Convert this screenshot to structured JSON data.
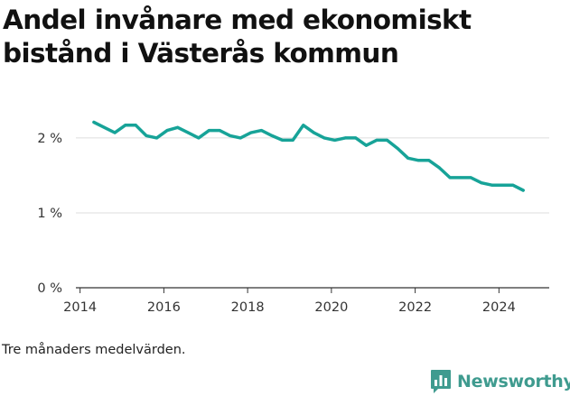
{
  "title": "Andel invånare med ekonomiskt bistånd i Västerås kommun",
  "note": "Tre månaders medelvärden.",
  "brand": {
    "name": "Newsworthy",
    "icon": "bar-chart-logo-icon",
    "color": "#3f9b8f"
  },
  "chart_data": {
    "type": "line",
    "title": "Andel invånare med ekonomiskt bistånd i Västerås kommun",
    "xlabel": "",
    "ylabel": "",
    "xlim": [
      2013.9,
      2025.2
    ],
    "ylim": [
      0,
      2.3
    ],
    "grid": "horizontal",
    "line_color": "#17a398",
    "x_ticks": [
      {
        "value": 2014,
        "label": "2014"
      },
      {
        "value": 2016,
        "label": "2016"
      },
      {
        "value": 2018,
        "label": "2018"
      },
      {
        "value": 2020,
        "label": "2020"
      },
      {
        "value": 2022,
        "label": "2022"
      },
      {
        "value": 2024,
        "label": "2024"
      }
    ],
    "y_ticks": [
      {
        "value": 0,
        "label": "0 %"
      },
      {
        "value": 1,
        "label": "1 %"
      },
      {
        "value": 2,
        "label": "2 %"
      }
    ],
    "series": [
      {
        "x": [
          2014.33,
          2014.58,
          2014.83,
          2015.08,
          2015.33,
          2015.58,
          2015.83,
          2016.08,
          2016.33,
          2016.58,
          2016.83,
          2017.08,
          2017.33,
          2017.58,
          2017.83,
          2018.08,
          2018.33,
          2018.58,
          2018.83,
          2019.08,
          2019.33,
          2019.58,
          2019.83,
          2020.08,
          2020.33,
          2020.58,
          2020.83,
          2021.08,
          2021.33,
          2021.58,
          2021.83,
          2022.08,
          2022.33,
          2022.58,
          2022.83,
          2023.08,
          2023.33,
          2023.58,
          2023.83,
          2024.08,
          2024.33,
          2024.58
        ],
        "values": [
          2.21,
          2.14,
          2.07,
          2.17,
          2.17,
          2.03,
          2.0,
          2.1,
          2.14,
          2.07,
          2.0,
          2.1,
          2.1,
          2.03,
          2.0,
          2.07,
          2.1,
          2.03,
          1.97,
          1.97,
          2.17,
          2.07,
          2.0,
          1.97,
          2.0,
          2.0,
          1.9,
          1.97,
          1.97,
          1.86,
          1.73,
          1.7,
          1.7,
          1.6,
          1.47,
          1.47,
          1.47,
          1.4,
          1.37,
          1.37,
          1.37,
          1.3
        ]
      }
    ]
  }
}
